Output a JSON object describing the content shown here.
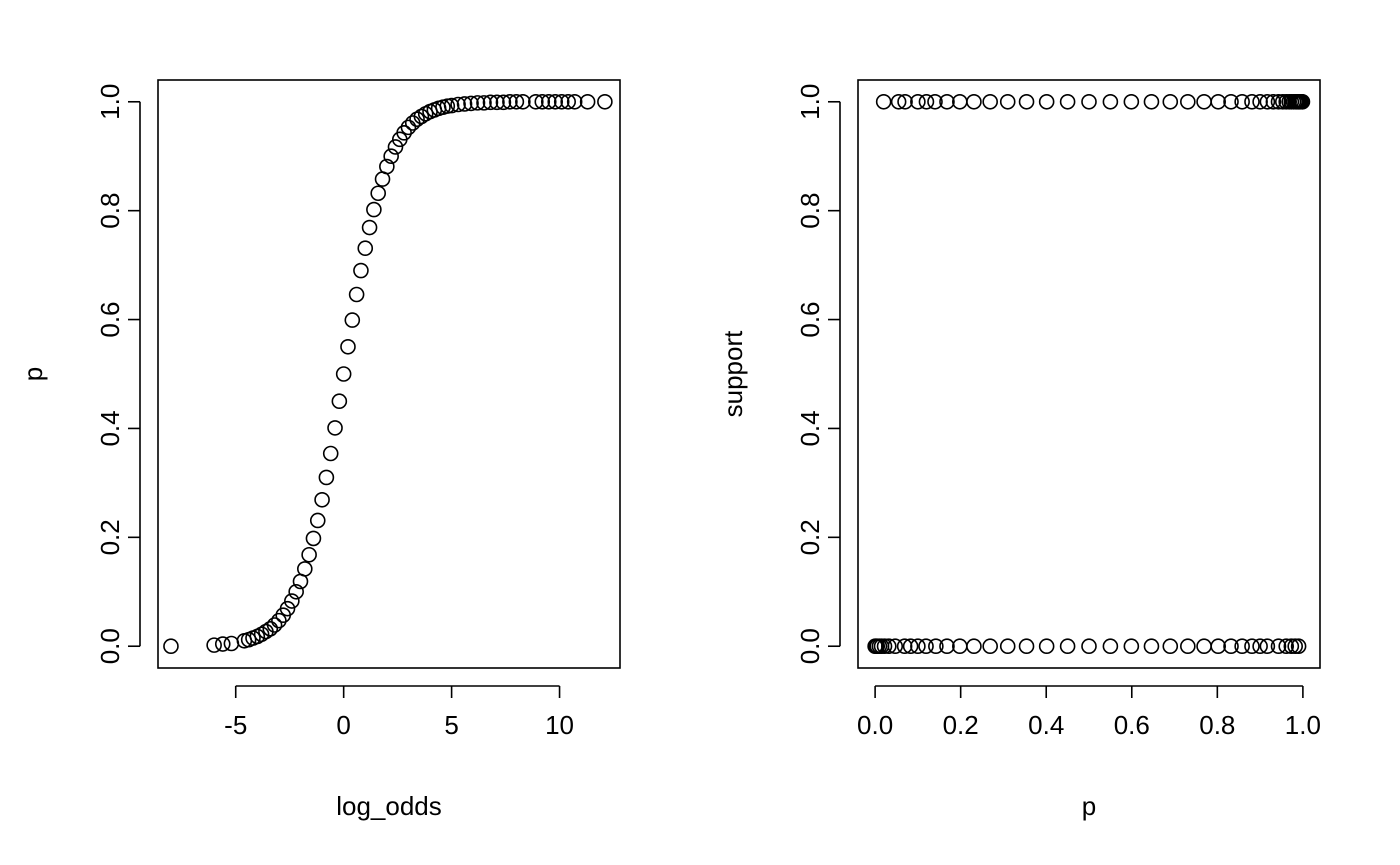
{
  "chart_data": [
    {
      "type": "scatter",
      "title": "",
      "xlabel": "log_odds",
      "ylabel": "p",
      "xlim": [
        -8.6,
        12.8
      ],
      "ylim": [
        -0.04,
        1.04
      ],
      "x_ticks": [
        -5,
        0,
        5,
        10
      ],
      "x_tick_labels": [
        "-5",
        "0",
        "5",
        "10"
      ],
      "y_ticks": [
        0.0,
        0.2,
        0.4,
        0.6,
        0.8,
        1.0
      ],
      "y_tick_labels": [
        "0.0",
        "0.2",
        "0.4",
        "0.6",
        "0.8",
        "1.0"
      ],
      "marker": "open-circle",
      "color": "#000000",
      "x": [
        -8.0,
        -6.0,
        -5.6,
        -5.2,
        -4.6,
        -4.4,
        -4.2,
        -4.0,
        -3.8,
        -3.6,
        -3.4,
        -3.2,
        -3.0,
        -2.8,
        -2.6,
        -2.4,
        -2.2,
        -2.0,
        -1.8,
        -1.6,
        -1.4,
        -1.2,
        -1.0,
        -0.8,
        -0.6,
        -0.4,
        -0.2,
        0.0,
        0.2,
        0.4,
        0.6,
        0.8,
        1.0,
        1.2,
        1.4,
        1.6,
        1.8,
        2.0,
        2.2,
        2.4,
        2.6,
        2.8,
        3.0,
        3.2,
        3.4,
        3.6,
        3.8,
        4.0,
        4.2,
        4.4,
        4.6,
        4.8,
        5.0,
        5.3,
        5.6,
        5.9,
        6.2,
        6.5,
        6.8,
        7.1,
        7.4,
        7.7,
        8.0,
        8.3,
        8.9,
        9.2,
        9.5,
        9.8,
        10.1,
        10.4,
        10.7,
        11.3,
        12.1
      ],
      "y": [
        0.0,
        0.002,
        0.004,
        0.005,
        0.01,
        0.012,
        0.015,
        0.018,
        0.022,
        0.027,
        0.032,
        0.039,
        0.047,
        0.057,
        0.069,
        0.083,
        0.1,
        0.119,
        0.142,
        0.168,
        0.198,
        0.231,
        0.269,
        0.31,
        0.354,
        0.401,
        0.45,
        0.5,
        0.55,
        0.599,
        0.646,
        0.69,
        0.731,
        0.769,
        0.802,
        0.832,
        0.858,
        0.881,
        0.9,
        0.917,
        0.931,
        0.943,
        0.953,
        0.961,
        0.968,
        0.973,
        0.978,
        0.982,
        0.985,
        0.988,
        0.99,
        0.992,
        0.993,
        0.995,
        0.996,
        0.997,
        0.998,
        0.998,
        0.999,
        0.999,
        0.999,
        1.0,
        1.0,
        1.0,
        1.0,
        1.0,
        1.0,
        1.0,
        1.0,
        1.0,
        1.0,
        1.0,
        1.0
      ]
    },
    {
      "type": "scatter",
      "title": "",
      "xlabel": "p",
      "ylabel": "support",
      "xlim": [
        -0.04,
        1.04
      ],
      "ylim": [
        -0.04,
        1.04
      ],
      "x_ticks": [
        0.0,
        0.2,
        0.4,
        0.6,
        0.8,
        1.0
      ],
      "x_tick_labels": [
        "0.0",
        "0.2",
        "0.4",
        "0.6",
        "0.8",
        "1.0"
      ],
      "y_ticks": [
        0.0,
        0.2,
        0.4,
        0.6,
        0.8,
        1.0
      ],
      "y_tick_labels": [
        "0.0",
        "0.2",
        "0.4",
        "0.6",
        "0.8",
        "1.0"
      ],
      "marker": "open-circle",
      "color": "#000000",
      "x": [
        0.02,
        0.055,
        0.07,
        0.1,
        0.12,
        0.14,
        0.168,
        0.198,
        0.231,
        0.269,
        0.31,
        0.354,
        0.401,
        0.45,
        0.5,
        0.55,
        0.599,
        0.646,
        0.69,
        0.731,
        0.769,
        0.802,
        0.832,
        0.858,
        0.881,
        0.9,
        0.917,
        0.931,
        0.943,
        0.953,
        0.961,
        0.968,
        0.973,
        0.978,
        0.982,
        0.985,
        0.988,
        0.99,
        0.992,
        0.995,
        0.998,
        0.999,
        0.0,
        0.002,
        0.005,
        0.01,
        0.015,
        0.022,
        0.032,
        0.047,
        0.069,
        0.083,
        0.1,
        0.119,
        0.142,
        0.168,
        0.198,
        0.231,
        0.269,
        0.31,
        0.354,
        0.401,
        0.45,
        0.5,
        0.55,
        0.599,
        0.646,
        0.69,
        0.731,
        0.769,
        0.802,
        0.832,
        0.858,
        0.881,
        0.9,
        0.917,
        0.943,
        0.961,
        0.973,
        0.982,
        0.99
      ],
      "y": [
        1,
        1,
        1,
        1,
        1,
        1,
        1,
        1,
        1,
        1,
        1,
        1,
        1,
        1,
        1,
        1,
        1,
        1,
        1,
        1,
        1,
        1,
        1,
        1,
        1,
        1,
        1,
        1,
        1,
        1,
        1,
        1,
        1,
        1,
        1,
        1,
        1,
        1,
        1,
        1,
        1,
        1,
        0,
        0,
        0,
        0,
        0,
        0,
        0,
        0,
        0,
        0,
        0,
        0,
        0,
        0,
        0,
        0,
        0,
        0,
        0,
        0,
        0,
        0,
        0,
        0,
        0,
        0,
        0,
        0,
        0,
        0,
        0,
        0,
        0,
        0,
        0,
        0,
        0,
        0,
        0
      ]
    }
  ]
}
